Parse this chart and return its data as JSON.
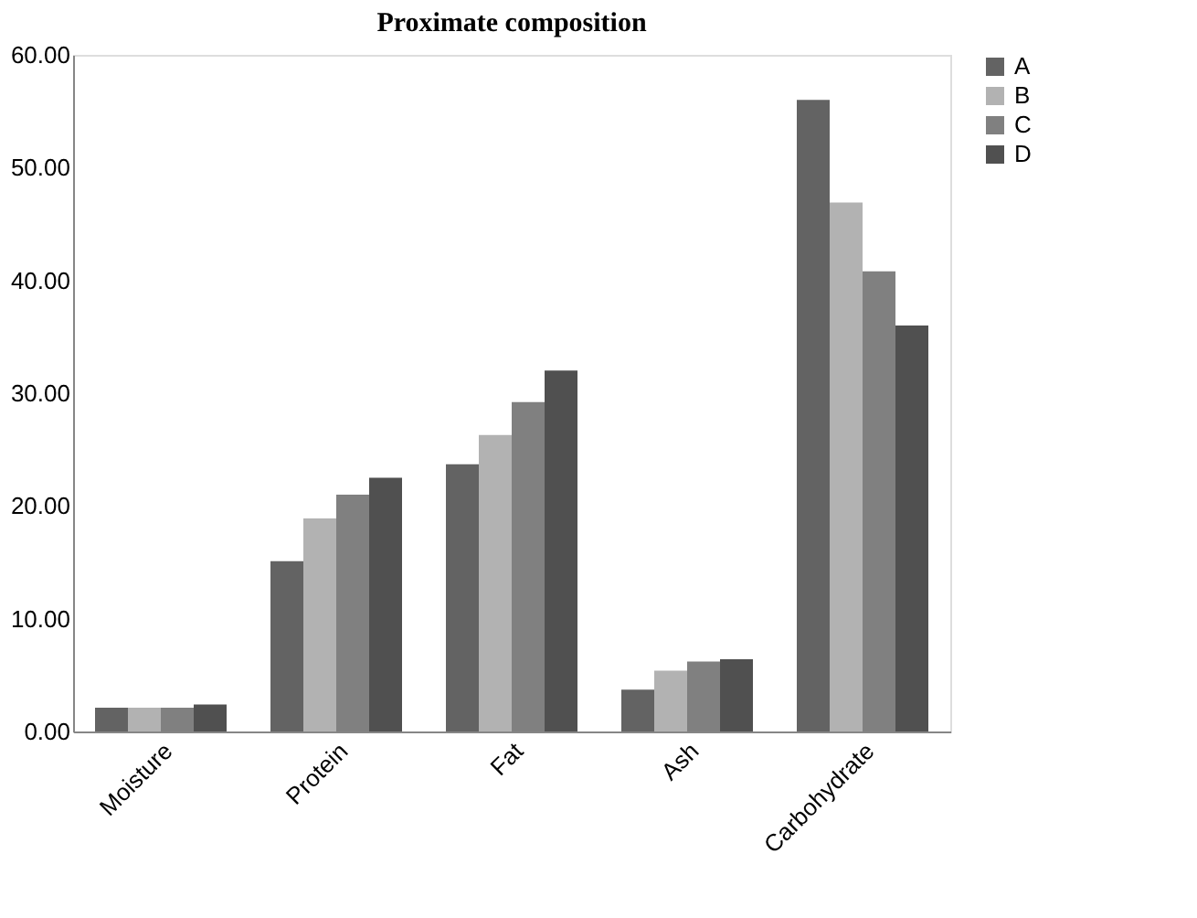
{
  "chart_data": {
    "type": "bar",
    "title": "Proximate composition",
    "categories": [
      "Moisture",
      "Protein",
      "Fat",
      "Ash",
      "Carbohydrate"
    ],
    "series": [
      {
        "name": "A",
        "color": "#636363",
        "values": [
          2.1,
          15.1,
          23.7,
          3.7,
          56.0
        ]
      },
      {
        "name": "B",
        "color": "#b2b2b2",
        "values": [
          2.1,
          18.9,
          26.3,
          5.4,
          46.9
        ]
      },
      {
        "name": "C",
        "color": "#808080",
        "values": [
          2.1,
          21.0,
          29.2,
          6.2,
          40.8
        ]
      },
      {
        "name": "D",
        "color": "#505050",
        "values": [
          2.4,
          22.5,
          32.0,
          6.4,
          36.0
        ]
      }
    ],
    "ylim": [
      0,
      60
    ],
    "yticks": [
      {
        "value": 0,
        "label": "0.00"
      },
      {
        "value": 10,
        "label": "10.00"
      },
      {
        "value": 20,
        "label": "20.00"
      },
      {
        "value": 30,
        "label": "30.00"
      },
      {
        "value": 40,
        "label": "40.00"
      },
      {
        "value": 50,
        "label": "50.00"
      },
      {
        "value": 60,
        "label": "60.00"
      }
    ],
    "grid": false,
    "legend": "right"
  }
}
